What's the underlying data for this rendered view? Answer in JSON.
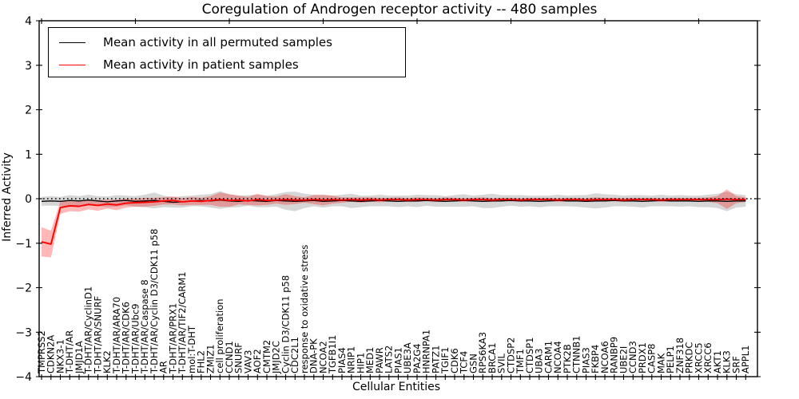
{
  "figure": {
    "title": "Coregulation of Androgen receptor activity -- 480 samples",
    "xlabel": "Cellular Entities",
    "ylabel": "Inferred Activity"
  },
  "legend": {
    "position": "upper left",
    "entries": [
      {
        "label": "Mean activity in all permuted samples",
        "color": "#000000"
      },
      {
        "label": "Mean activity in patient samples",
        "color": "#ff0000"
      }
    ]
  },
  "chart_data": {
    "type": "line",
    "title": "Coregulation of Androgen receptor activity -- 480 samples",
    "xlabel": "Cellular Entities",
    "ylabel": "Inferred Activity",
    "ylim": [
      -4,
      4
    ],
    "y_ticks": [
      4,
      3,
      2,
      1,
      0,
      -1,
      -2,
      -3,
      -4
    ],
    "y_tick_labels": [
      "4",
      "3",
      "2",
      "1",
      "0",
      "−1",
      "−2",
      "−3",
      "−4"
    ],
    "grid": false,
    "legend_position": "upper left",
    "zero_line": {
      "y": 0,
      "style": "dotted",
      "color": "#000000"
    },
    "x_major_tick_every": 10,
    "categories": [
      "TMPRSS2",
      "CDKN2A",
      "NKX3-1",
      "T-DHT/AR",
      "JMJD1A",
      "T-DHT/AR/CyclinD1",
      "T-DHT/AR/SNURF",
      "KLK2",
      "T-DHT/AR/ARA70",
      "T-DHT/AR/CDK6",
      "T-DHT/AR/Ubc9",
      "T-DHT/AR/Caspase 8",
      "T-DHT/AR/Cyclin D3/CDK11 p58",
      "AR",
      "T-DHT/AR/PRX1",
      "T-DHT/AR/TIF2/CARM1",
      "mol:T-DHT",
      "FHL2",
      "ZMIZ1",
      "cell proliferation",
      "CCND1",
      "SNURF",
      "VAV3",
      "AOF2",
      "CMTM2",
      "JMJD2C",
      "Cyclin D3/CDK11 p58",
      "CDC2L1",
      "response to oxidative stress",
      "DNA-PK",
      "NCOA2",
      "TGFB1I1",
      "PIAS4",
      "NRIP1",
      "HIP1",
      "MED1",
      "PAWR",
      "LATS2",
      "PIAS1",
      "UBE3A",
      "PA2G4",
      "HNRNPA1",
      "PATZ1",
      "TGIF1",
      "CDK6",
      "TCF4",
      "GSN",
      "RPS6KA3",
      "BRCA1",
      "SVIL",
      "CTDSP2",
      "TMF1",
      "CTDSP1",
      "UBA3",
      "CARM1",
      "NCOA4",
      "PTK2B",
      "CTNNB1",
      "PIAS3",
      "FKBP4",
      "NCOA6",
      "RANBP9",
      "UBE2I",
      "CCND3",
      "PRDX1",
      "CASP8",
      "MAK",
      "PELP1",
      "ZNF318",
      "PRKDC",
      "XRCC5",
      "XRCC6",
      "AKT1",
      "KLK3",
      "SRF",
      "APPL1"
    ],
    "series": [
      {
        "name": "Mean activity in all permuted samples",
        "color": "#000000",
        "band_color": "rgba(0,0,0,0.16)",
        "values": [
          -0.06,
          -0.05,
          -0.06,
          -0.04,
          -0.05,
          -0.03,
          -0.05,
          -0.07,
          -0.05,
          -0.04,
          -0.06,
          -0.05,
          -0.04,
          -0.06,
          -0.08,
          -0.07,
          -0.05,
          -0.04,
          -0.05,
          -0.03,
          -0.05,
          -0.06,
          -0.04,
          -0.05,
          -0.06,
          -0.04,
          -0.05,
          -0.06,
          -0.05,
          -0.04,
          -0.06,
          -0.05,
          -0.04,
          -0.05,
          -0.06,
          -0.05,
          -0.04,
          -0.05,
          -0.06,
          -0.05,
          -0.05,
          -0.04,
          -0.05,
          -0.06,
          -0.05,
          -0.04,
          -0.05,
          -0.06,
          -0.05,
          -0.05,
          -0.04,
          -0.05,
          -0.05,
          -0.06,
          -0.05,
          -0.04,
          -0.05,
          -0.05,
          -0.06,
          -0.05,
          -0.05,
          -0.04,
          -0.05,
          -0.05,
          -0.06,
          -0.05,
          -0.04,
          -0.05,
          -0.05,
          -0.05,
          -0.06,
          -0.05,
          -0.05,
          -0.06,
          -0.05,
          -0.05
        ],
        "band_halfwidth": [
          0.1,
          0.11,
          0.1,
          0.12,
          0.11,
          0.12,
          0.11,
          0.12,
          0.13,
          0.11,
          0.12,
          0.14,
          0.18,
          0.13,
          0.12,
          0.13,
          0.12,
          0.13,
          0.15,
          0.2,
          0.15,
          0.13,
          0.12,
          0.14,
          0.13,
          0.14,
          0.2,
          0.22,
          0.16,
          0.13,
          0.14,
          0.12,
          0.13,
          0.16,
          0.13,
          0.12,
          0.13,
          0.12,
          0.13,
          0.12,
          0.14,
          0.12,
          0.13,
          0.12,
          0.13,
          0.14,
          0.12,
          0.15,
          0.16,
          0.13,
          0.12,
          0.13,
          0.12,
          0.13,
          0.12,
          0.13,
          0.12,
          0.13,
          0.14,
          0.17,
          0.15,
          0.13,
          0.12,
          0.13,
          0.14,
          0.12,
          0.13,
          0.12,
          0.13,
          0.12,
          0.13,
          0.14,
          0.16,
          0.22,
          0.15,
          0.13
        ]
      },
      {
        "name": "Mean activity in patient samples",
        "color": "#ff0000",
        "band_color": "rgba(255,0,0,0.28)",
        "values": [
          -0.97,
          -1.02,
          -0.2,
          -0.16,
          -0.17,
          -0.13,
          -0.15,
          -0.12,
          -0.14,
          -0.1,
          -0.09,
          -0.08,
          -0.07,
          -0.05,
          -0.04,
          -0.07,
          -0.05,
          -0.06,
          -0.04,
          -0.02,
          -0.04,
          -0.03,
          -0.05,
          -0.02,
          -0.04,
          -0.03,
          -0.02,
          -0.03,
          -0.03,
          -0.02,
          -0.03,
          -0.02,
          -0.03,
          -0.02,
          -0.03,
          -0.02,
          -0.03,
          -0.02,
          -0.02,
          -0.03,
          -0.02,
          -0.02,
          -0.03,
          -0.02,
          -0.02,
          -0.03,
          -0.02,
          -0.02,
          -0.03,
          -0.02,
          -0.02,
          -0.03,
          -0.02,
          -0.02,
          -0.02,
          -0.03,
          -0.02,
          -0.02,
          -0.03,
          -0.02,
          -0.02,
          -0.02,
          -0.03,
          -0.02,
          -0.02,
          -0.02,
          -0.03,
          -0.02,
          -0.02,
          -0.02,
          -0.02,
          -0.02,
          -0.02,
          -0.01,
          -0.02,
          -0.02
        ],
        "band_halfwidth": [
          0.33,
          0.3,
          0.14,
          0.12,
          0.12,
          0.11,
          0.12,
          0.1,
          0.12,
          0.1,
          0.09,
          0.1,
          0.09,
          0.08,
          0.09,
          0.08,
          0.09,
          0.08,
          0.1,
          0.16,
          0.14,
          0.1,
          0.09,
          0.13,
          0.1,
          0.08,
          0.12,
          0.09,
          0.06,
          0.1,
          0.12,
          0.09,
          0.06,
          0.05,
          0.06,
          0.05,
          0.05,
          0.04,
          0.05,
          0.04,
          0.05,
          0.04,
          0.04,
          0.05,
          0.04,
          0.04,
          0.04,
          0.05,
          0.04,
          0.04,
          0.04,
          0.04,
          0.04,
          0.04,
          0.04,
          0.04,
          0.04,
          0.04,
          0.04,
          0.05,
          0.04,
          0.04,
          0.04,
          0.04,
          0.04,
          0.04,
          0.04,
          0.04,
          0.04,
          0.04,
          0.04,
          0.05,
          0.08,
          0.22,
          0.08,
          0.05
        ]
      }
    ]
  }
}
